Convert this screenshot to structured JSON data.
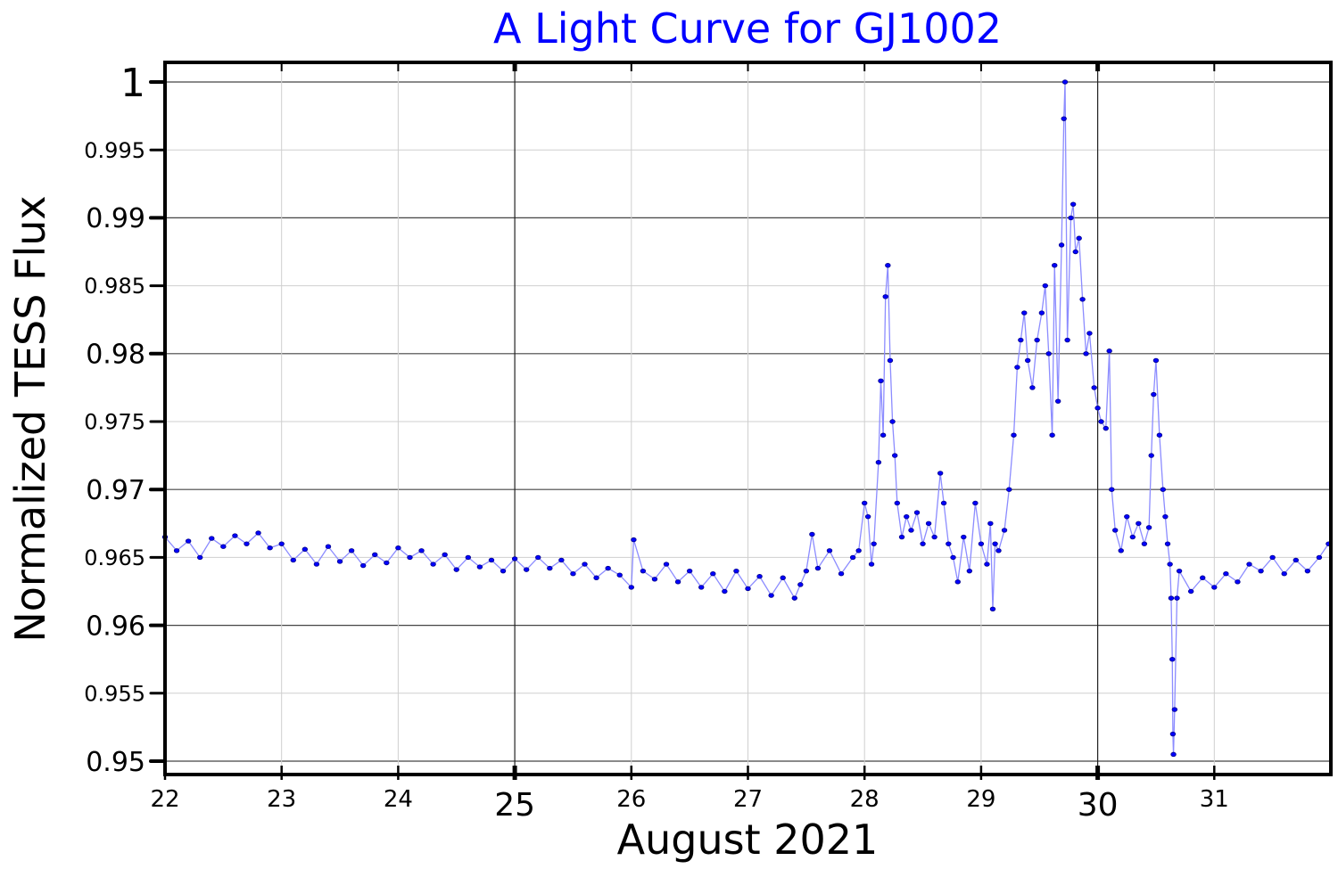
{
  "chart_data": {
    "type": "line",
    "title": "A Light Curve for GJ1002",
    "xlabel": "August 2021",
    "ylabel": "Normalized TESS Flux",
    "xlim": [
      22,
      32
    ],
    "ylim": [
      0.95,
      1.0
    ],
    "x_ticks": [
      {
        "value": 22,
        "label": "22",
        "major": false
      },
      {
        "value": 23,
        "label": "23",
        "major": false
      },
      {
        "value": 24,
        "label": "24",
        "major": false
      },
      {
        "value": 25,
        "label": "25",
        "major": true
      },
      {
        "value": 26,
        "label": "26",
        "major": false
      },
      {
        "value": 27,
        "label": "27",
        "major": false
      },
      {
        "value": 28,
        "label": "28",
        "major": false
      },
      {
        "value": 29,
        "label": "29",
        "major": false
      },
      {
        "value": 30,
        "label": "30",
        "major": true
      },
      {
        "value": 31,
        "label": "31",
        "major": false
      }
    ],
    "y_ticks": [
      {
        "value": 0.95,
        "label": "0.95",
        "major": true
      },
      {
        "value": 0.955,
        "label": "0.955",
        "major": false
      },
      {
        "value": 0.96,
        "label": "0.96",
        "major": true
      },
      {
        "value": 0.965,
        "label": "0.965",
        "major": false
      },
      {
        "value": 0.97,
        "label": "0.97",
        "major": true
      },
      {
        "value": 0.975,
        "label": "0.975",
        "major": false
      },
      {
        "value": 0.98,
        "label": "0.98",
        "major": true
      },
      {
        "value": 0.985,
        "label": "0.985",
        "major": false
      },
      {
        "value": 0.99,
        "label": "0.99",
        "major": true
      },
      {
        "value": 0.995,
        "label": "0.995",
        "major": false
      },
      {
        "value": 1.0,
        "label": "1",
        "major": true
      }
    ],
    "grid": true,
    "colors": {
      "title": "#0000ff",
      "marker": "#0000ff",
      "line": "#8c8cff"
    },
    "series": [
      {
        "points": [
          [
            22.0,
            0.9665
          ],
          [
            22.1,
            0.9655
          ],
          [
            22.2,
            0.9662
          ],
          [
            22.3,
            0.965
          ],
          [
            22.4,
            0.9664
          ],
          [
            22.5,
            0.9658
          ],
          [
            22.6,
            0.9666
          ],
          [
            22.7,
            0.966
          ],
          [
            22.8,
            0.9668
          ],
          [
            22.9,
            0.9657
          ],
          [
            23.0,
            0.966
          ],
          [
            23.1,
            0.9648
          ],
          [
            23.2,
            0.9656
          ],
          [
            23.3,
            0.9645
          ],
          [
            23.4,
            0.9658
          ],
          [
            23.5,
            0.9647
          ],
          [
            23.6,
            0.9655
          ],
          [
            23.7,
            0.9644
          ],
          [
            23.8,
            0.9652
          ],
          [
            23.9,
            0.9646
          ],
          [
            24.0,
            0.9657
          ],
          [
            24.1,
            0.965
          ],
          [
            24.2,
            0.9655
          ],
          [
            24.3,
            0.9645
          ],
          [
            24.4,
            0.9652
          ],
          [
            24.5,
            0.9641
          ],
          [
            24.6,
            0.965
          ],
          [
            24.7,
            0.9643
          ],
          [
            24.8,
            0.9648
          ],
          [
            24.9,
            0.964
          ],
          [
            25.0,
            0.9649
          ],
          [
            25.1,
            0.9641
          ],
          [
            25.2,
            0.965
          ],
          [
            25.3,
            0.9642
          ],
          [
            25.4,
            0.9648
          ],
          [
            25.5,
            0.9638
          ],
          [
            25.6,
            0.9645
          ],
          [
            25.7,
            0.9635
          ],
          [
            25.8,
            0.9642
          ],
          [
            25.9,
            0.9637
          ],
          [
            26.0,
            0.9628
          ],
          [
            26.02,
            0.9663
          ],
          [
            26.1,
            0.964
          ],
          [
            26.2,
            0.9634
          ],
          [
            26.3,
            0.9645
          ],
          [
            26.4,
            0.9632
          ],
          [
            26.5,
            0.964
          ],
          [
            26.6,
            0.9628
          ],
          [
            26.7,
            0.9638
          ],
          [
            26.8,
            0.9625
          ],
          [
            26.9,
            0.964
          ],
          [
            27.0,
            0.9627
          ],
          [
            27.1,
            0.9636
          ],
          [
            27.2,
            0.9622
          ],
          [
            27.3,
            0.9635
          ],
          [
            27.4,
            0.962
          ],
          [
            27.45,
            0.963
          ],
          [
            27.5,
            0.964
          ],
          [
            27.55,
            0.9667
          ],
          [
            27.6,
            0.9642
          ],
          [
            27.7,
            0.9655
          ],
          [
            27.8,
            0.9638
          ],
          [
            27.9,
            0.965
          ],
          [
            27.95,
            0.9655
          ],
          [
            28.0,
            0.969
          ],
          [
            28.03,
            0.968
          ],
          [
            28.06,
            0.9645
          ],
          [
            28.08,
            0.966
          ],
          [
            28.12,
            0.972
          ],
          [
            28.14,
            0.978
          ],
          [
            28.16,
            0.974
          ],
          [
            28.18,
            0.9842
          ],
          [
            28.2,
            0.9865
          ],
          [
            28.22,
            0.9795
          ],
          [
            28.24,
            0.975
          ],
          [
            28.26,
            0.9725
          ],
          [
            28.28,
            0.969
          ],
          [
            28.32,
            0.9665
          ],
          [
            28.36,
            0.968
          ],
          [
            28.4,
            0.967
          ],
          [
            28.45,
            0.9683
          ],
          [
            28.5,
            0.966
          ],
          [
            28.55,
            0.9675
          ],
          [
            28.6,
            0.9665
          ],
          [
            28.65,
            0.9712
          ],
          [
            28.68,
            0.969
          ],
          [
            28.72,
            0.966
          ],
          [
            28.76,
            0.965
          ],
          [
            28.8,
            0.9632
          ],
          [
            28.85,
            0.9665
          ],
          [
            28.9,
            0.964
          ],
          [
            28.95,
            0.969
          ],
          [
            29.0,
            0.966
          ],
          [
            29.05,
            0.9645
          ],
          [
            29.08,
            0.9675
          ],
          [
            29.1,
            0.9612
          ],
          [
            29.12,
            0.966
          ],
          [
            29.15,
            0.9655
          ],
          [
            29.2,
            0.967
          ],
          [
            29.24,
            0.97
          ],
          [
            29.28,
            0.974
          ],
          [
            29.31,
            0.979
          ],
          [
            29.34,
            0.981
          ],
          [
            29.37,
            0.983
          ],
          [
            29.4,
            0.9795
          ],
          [
            29.44,
            0.9775
          ],
          [
            29.48,
            0.981
          ],
          [
            29.52,
            0.983
          ],
          [
            29.55,
            0.985
          ],
          [
            29.58,
            0.98
          ],
          [
            29.61,
            0.974
          ],
          [
            29.63,
            0.9865
          ],
          [
            29.66,
            0.9765
          ],
          [
            29.69,
            0.988
          ],
          [
            29.71,
            0.9973
          ],
          [
            29.72,
            1.0
          ],
          [
            29.74,
            0.981
          ],
          [
            29.77,
            0.99
          ],
          [
            29.79,
            0.991
          ],
          [
            29.81,
            0.9875
          ],
          [
            29.84,
            0.9885
          ],
          [
            29.87,
            0.984
          ],
          [
            29.9,
            0.98
          ],
          [
            29.93,
            0.9815
          ],
          [
            29.97,
            0.9775
          ],
          [
            30.0,
            0.976
          ],
          [
            30.03,
            0.975
          ],
          [
            30.07,
            0.9745
          ],
          [
            30.1,
            0.9802
          ],
          [
            30.12,
            0.97
          ],
          [
            30.15,
            0.967
          ],
          [
            30.2,
            0.9655
          ],
          [
            30.25,
            0.968
          ],
          [
            30.3,
            0.9665
          ],
          [
            30.35,
            0.9675
          ],
          [
            30.4,
            0.966
          ],
          [
            30.44,
            0.9672
          ],
          [
            30.46,
            0.9725
          ],
          [
            30.48,
            0.977
          ],
          [
            30.5,
            0.9795
          ],
          [
            30.53,
            0.974
          ],
          [
            30.56,
            0.97
          ],
          [
            30.58,
            0.968
          ],
          [
            30.6,
            0.966
          ],
          [
            30.62,
            0.9645
          ],
          [
            30.63,
            0.962
          ],
          [
            30.64,
            0.9575
          ],
          [
            30.645,
            0.952
          ],
          [
            30.65,
            0.9505
          ],
          [
            30.66,
            0.9538
          ],
          [
            30.68,
            0.962
          ],
          [
            30.7,
            0.964
          ],
          [
            30.8,
            0.9625
          ],
          [
            30.9,
            0.9635
          ],
          [
            31.0,
            0.9628
          ],
          [
            31.1,
            0.9638
          ],
          [
            31.2,
            0.9632
          ],
          [
            31.3,
            0.9645
          ],
          [
            31.4,
            0.964
          ],
          [
            31.5,
            0.965
          ],
          [
            31.6,
            0.9638
          ],
          [
            31.7,
            0.9648
          ],
          [
            31.8,
            0.964
          ],
          [
            31.9,
            0.965
          ],
          [
            31.98,
            0.966
          ]
        ]
      }
    ]
  }
}
